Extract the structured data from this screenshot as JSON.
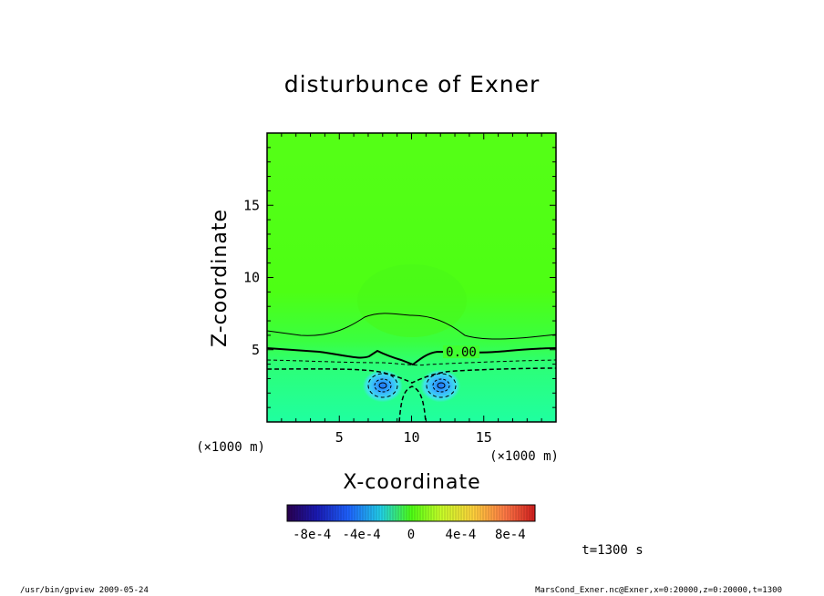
{
  "chart_data": {
    "type": "heatmap",
    "title": "disturbunce of Exner",
    "xlabel": "X-coordinate",
    "ylabel": "Z-coordinate",
    "x_unit": "(×1000 m)",
    "z_unit": "(×1000 m)",
    "xlim": [
      0,
      20
    ],
    "ylim": [
      0,
      20
    ],
    "x_ticks": [
      "5",
      "10",
      "15"
    ],
    "z_ticks": [
      "5",
      "10",
      "15"
    ],
    "contour_label": "0.00",
    "colorbar": {
      "range": [
        -0.001,
        0.001
      ],
      "tick_labels": [
        "-8e-4",
        "-4e-4",
        "0",
        "4e-4",
        "8e-4"
      ]
    },
    "colors": {
      "background_field": "#4dff14",
      "lower_field": "#22ff9a",
      "cells": "#34b4ff"
    },
    "features": [
      {
        "x": 8,
        "z": 2.5,
        "sign": "negative"
      },
      {
        "x": 12,
        "z": 2.5,
        "sign": "negative"
      }
    ]
  },
  "annotations": {
    "time": "t=1300 s",
    "footer_left": "/usr/bin/gpview  2009-05-24",
    "footer_right": "MarsCond_Exner.nc@Exner,x=0:20000,z=0:20000,t=1300"
  }
}
